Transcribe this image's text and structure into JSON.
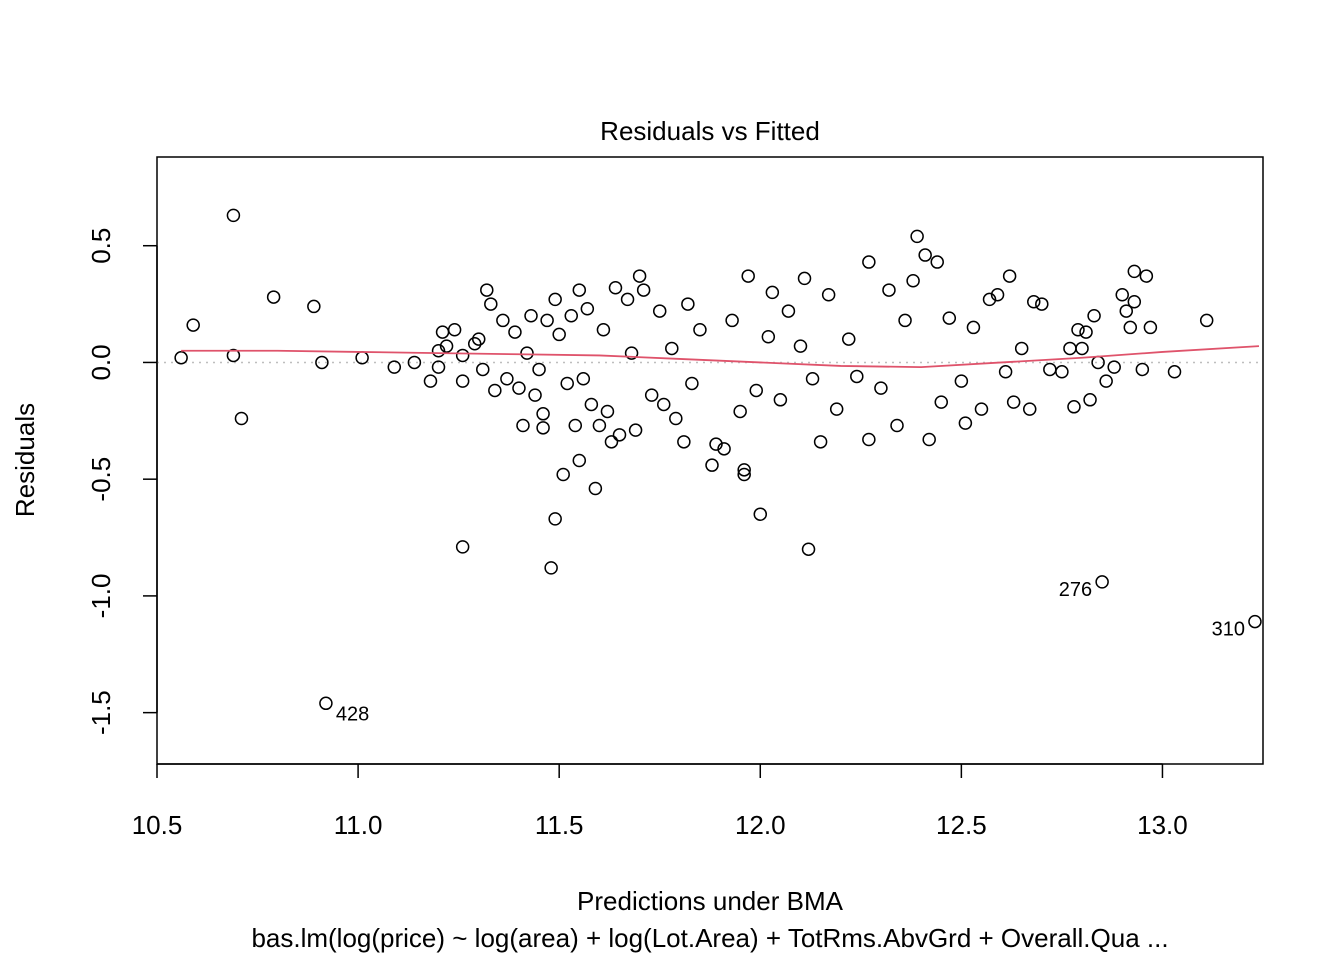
{
  "chart_data": {
    "type": "scatter",
    "title": "Residuals vs Fitted",
    "xlabel": "Predictions under BMA",
    "ylabel": "Residuals",
    "subtitle": "bas.lm(log(price) ~ log(area) + log(Lot.Area) + TotRms.AbvGrd + Overall.Qua ...",
    "xlim": [
      10.5,
      13.25
    ],
    "ylim": [
      -1.72,
      0.88
    ],
    "x_ticks": [
      10.5,
      11.0,
      11.5,
      12.0,
      12.5,
      13.0
    ],
    "x_tick_labels": [
      "10.5",
      "11.0",
      "11.5",
      "12.0",
      "12.5",
      "13.0"
    ],
    "y_ticks": [
      -1.5,
      -1.0,
      -0.5,
      0.0,
      0.5
    ],
    "y_tick_labels": [
      "-1.5",
      "-1.0",
      "-0.5",
      "0.0",
      "0.5"
    ],
    "zero_line": true,
    "grid": false,
    "colors": {
      "points": "#000000",
      "smooth": "#DF536B",
      "zero_line": "#BEBEBE"
    },
    "labeled_points": [
      {
        "label": "428",
        "x": 10.92,
        "y": -1.46
      },
      {
        "label": "276",
        "x": 12.85,
        "y": -0.94
      },
      {
        "label": "310",
        "x": 13.23,
        "y": -1.11
      }
    ],
    "points": [
      [
        10.56,
        0.02
      ],
      [
        10.59,
        0.16
      ],
      [
        10.69,
        0.63
      ],
      [
        10.69,
        0.03
      ],
      [
        10.71,
        -0.24
      ],
      [
        10.79,
        0.28
      ],
      [
        10.89,
        0.24
      ],
      [
        10.91,
        0.0
      ],
      [
        11.01,
        0.02
      ],
      [
        11.09,
        -0.02
      ],
      [
        11.14,
        0.0
      ],
      [
        11.18,
        -0.08
      ],
      [
        11.2,
        0.05
      ],
      [
        11.2,
        -0.02
      ],
      [
        11.21,
        0.13
      ],
      [
        11.22,
        0.07
      ],
      [
        11.24,
        0.14
      ],
      [
        11.26,
        -0.08
      ],
      [
        11.26,
        0.03
      ],
      [
        11.26,
        -0.79
      ],
      [
        11.29,
        0.08
      ],
      [
        11.3,
        0.1
      ],
      [
        11.31,
        -0.03
      ],
      [
        11.32,
        0.31
      ],
      [
        11.33,
        0.25
      ],
      [
        11.34,
        -0.12
      ],
      [
        11.36,
        0.18
      ],
      [
        11.37,
        -0.07
      ],
      [
        11.39,
        0.13
      ],
      [
        11.4,
        -0.11
      ],
      [
        11.41,
        -0.27
      ],
      [
        11.42,
        0.04
      ],
      [
        11.43,
        0.2
      ],
      [
        11.44,
        -0.14
      ],
      [
        11.45,
        -0.03
      ],
      [
        11.46,
        -0.28
      ],
      [
        11.46,
        -0.22
      ],
      [
        11.47,
        0.18
      ],
      [
        11.48,
        -0.88
      ],
      [
        11.49,
        -0.67
      ],
      [
        11.49,
        0.27
      ],
      [
        11.5,
        0.12
      ],
      [
        11.51,
        -0.48
      ],
      [
        11.52,
        -0.09
      ],
      [
        11.53,
        0.2
      ],
      [
        11.54,
        -0.27
      ],
      [
        11.55,
        -0.42
      ],
      [
        11.55,
        0.31
      ],
      [
        11.56,
        -0.07
      ],
      [
        11.57,
        0.23
      ],
      [
        11.58,
        -0.18
      ],
      [
        11.59,
        -0.54
      ],
      [
        11.6,
        -0.27
      ],
      [
        11.61,
        0.14
      ],
      [
        11.62,
        -0.21
      ],
      [
        11.63,
        -0.34
      ],
      [
        11.64,
        0.32
      ],
      [
        11.65,
        -0.31
      ],
      [
        11.67,
        0.27
      ],
      [
        11.68,
        0.04
      ],
      [
        11.69,
        -0.29
      ],
      [
        11.7,
        0.37
      ],
      [
        11.71,
        0.31
      ],
      [
        11.73,
        -0.14
      ],
      [
        11.75,
        0.22
      ],
      [
        11.76,
        -0.18
      ],
      [
        11.78,
        0.06
      ],
      [
        11.79,
        -0.24
      ],
      [
        11.81,
        -0.34
      ],
      [
        11.82,
        0.25
      ],
      [
        11.83,
        -0.09
      ],
      [
        11.85,
        0.14
      ],
      [
        11.88,
        -0.44
      ],
      [
        11.89,
        -0.35
      ],
      [
        11.91,
        -0.37
      ],
      [
        11.93,
        0.18
      ],
      [
        11.95,
        -0.21
      ],
      [
        11.96,
        -0.48
      ],
      [
        11.96,
        -0.46
      ],
      [
        11.97,
        0.37
      ],
      [
        11.99,
        -0.12
      ],
      [
        12.0,
        -0.65
      ],
      [
        12.02,
        0.11
      ],
      [
        12.03,
        0.3
      ],
      [
        12.05,
        -0.16
      ],
      [
        12.07,
        0.22
      ],
      [
        12.1,
        0.07
      ],
      [
        12.11,
        0.36
      ],
      [
        12.12,
        -0.8
      ],
      [
        12.13,
        -0.07
      ],
      [
        12.15,
        -0.34
      ],
      [
        12.17,
        0.29
      ],
      [
        12.19,
        -0.2
      ],
      [
        12.22,
        0.1
      ],
      [
        12.24,
        -0.06
      ],
      [
        12.27,
        0.43
      ],
      [
        12.27,
        -0.33
      ],
      [
        12.3,
        -0.11
      ],
      [
        12.32,
        0.31
      ],
      [
        12.34,
        -0.27
      ],
      [
        12.36,
        0.18
      ],
      [
        12.38,
        0.35
      ],
      [
        12.39,
        0.54
      ],
      [
        12.41,
        0.46
      ],
      [
        12.42,
        -0.33
      ],
      [
        12.44,
        0.43
      ],
      [
        12.45,
        -0.17
      ],
      [
        12.47,
        0.19
      ],
      [
        12.5,
        -0.08
      ],
      [
        12.51,
        -0.26
      ],
      [
        12.53,
        0.15
      ],
      [
        12.55,
        -0.2
      ],
      [
        12.57,
        0.27
      ],
      [
        12.59,
        0.29
      ],
      [
        12.61,
        -0.04
      ],
      [
        12.62,
        0.37
      ],
      [
        12.63,
        -0.17
      ],
      [
        12.65,
        0.06
      ],
      [
        12.67,
        -0.2
      ],
      [
        12.68,
        0.26
      ],
      [
        12.7,
        0.25
      ],
      [
        12.72,
        -0.03
      ],
      [
        12.75,
        -0.04
      ],
      [
        12.77,
        0.06
      ],
      [
        12.78,
        -0.19
      ],
      [
        12.79,
        0.14
      ],
      [
        12.8,
        0.06
      ],
      [
        12.81,
        0.13
      ],
      [
        12.82,
        -0.16
      ],
      [
        12.83,
        0.2
      ],
      [
        12.84,
        0.0
      ],
      [
        12.86,
        -0.08
      ],
      [
        12.88,
        -0.02
      ],
      [
        12.9,
        0.29
      ],
      [
        12.91,
        0.22
      ],
      [
        12.92,
        0.15
      ],
      [
        12.93,
        0.39
      ],
      [
        12.93,
        0.26
      ],
      [
        12.95,
        -0.03
      ],
      [
        12.96,
        0.37
      ],
      [
        12.97,
        0.15
      ],
      [
        13.03,
        -0.04
      ],
      [
        13.11,
        0.18
      ]
    ],
    "smooth_line": {
      "x": [
        10.56,
        10.8,
        11.0,
        11.2,
        11.4,
        11.6,
        11.8,
        12.0,
        12.2,
        12.4,
        12.6,
        12.8,
        13.0,
        13.24
      ],
      "y": [
        0.05,
        0.05,
        0.045,
        0.04,
        0.035,
        0.03,
        0.015,
        0.0,
        -0.015,
        -0.02,
        0.0,
        0.02,
        0.045,
        0.07
      ]
    }
  }
}
